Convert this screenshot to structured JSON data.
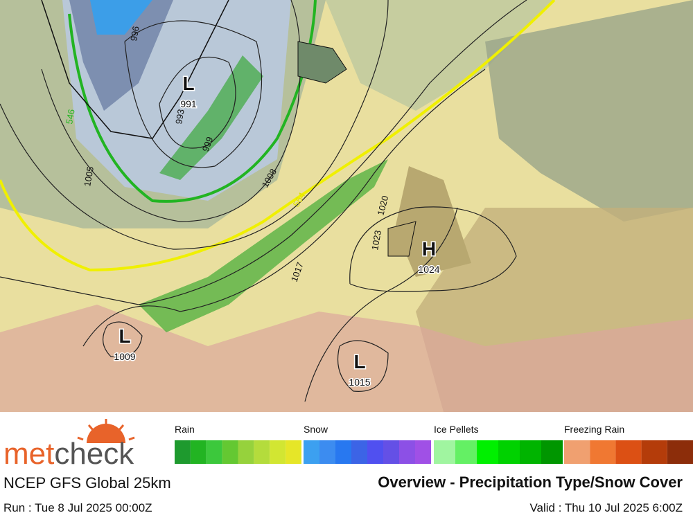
{
  "map": {
    "pressure_centers": [
      {
        "symbol": "L",
        "value": 991
      },
      {
        "symbol": "H",
        "value": 1024
      },
      {
        "symbol": "L",
        "value": 1009
      },
      {
        "symbol": "L",
        "value": 1015
      }
    ],
    "isobar_labels": [
      996,
      993,
      999,
      1005,
      1008,
      1017,
      1020,
      1023
    ],
    "thickness_labels": [
      564,
      546
    ]
  },
  "legend": {
    "groups": [
      {
        "name": "Rain",
        "colors": [
          "#1e9a2e",
          "#22b422",
          "#3cc83c",
          "#64c832",
          "#96d23c",
          "#b4dc3c",
          "#d2e632",
          "#e6e628"
        ]
      },
      {
        "name": "Snow",
        "colors": [
          "#3ca0f0",
          "#3c8cf0",
          "#2878f0",
          "#3c64e6",
          "#5050f0",
          "#6450e6",
          "#8c50e6",
          "#a050e6"
        ]
      },
      {
        "name": "Ice Pellets",
        "colors": [
          "#a0f5a0",
          "#64f064",
          "#00f000",
          "#00d200",
          "#00b400",
          "#009600"
        ]
      },
      {
        "name": "Freezing Rain",
        "colors": [
          "#f0a070",
          "#f07832",
          "#dc5014",
          "#b43c0a",
          "#8c2d0a"
        ]
      }
    ]
  },
  "footer": {
    "logo_part1": "met",
    "logo_part2": "check",
    "model": "NCEP GFS Global 25km",
    "title": "Overview - Precipitation Type/Snow Cover",
    "run": "Run : Tue 8 Jul 2025 00:00Z",
    "valid": "Valid : Thu 10 Jul 2025 6:00Z"
  }
}
